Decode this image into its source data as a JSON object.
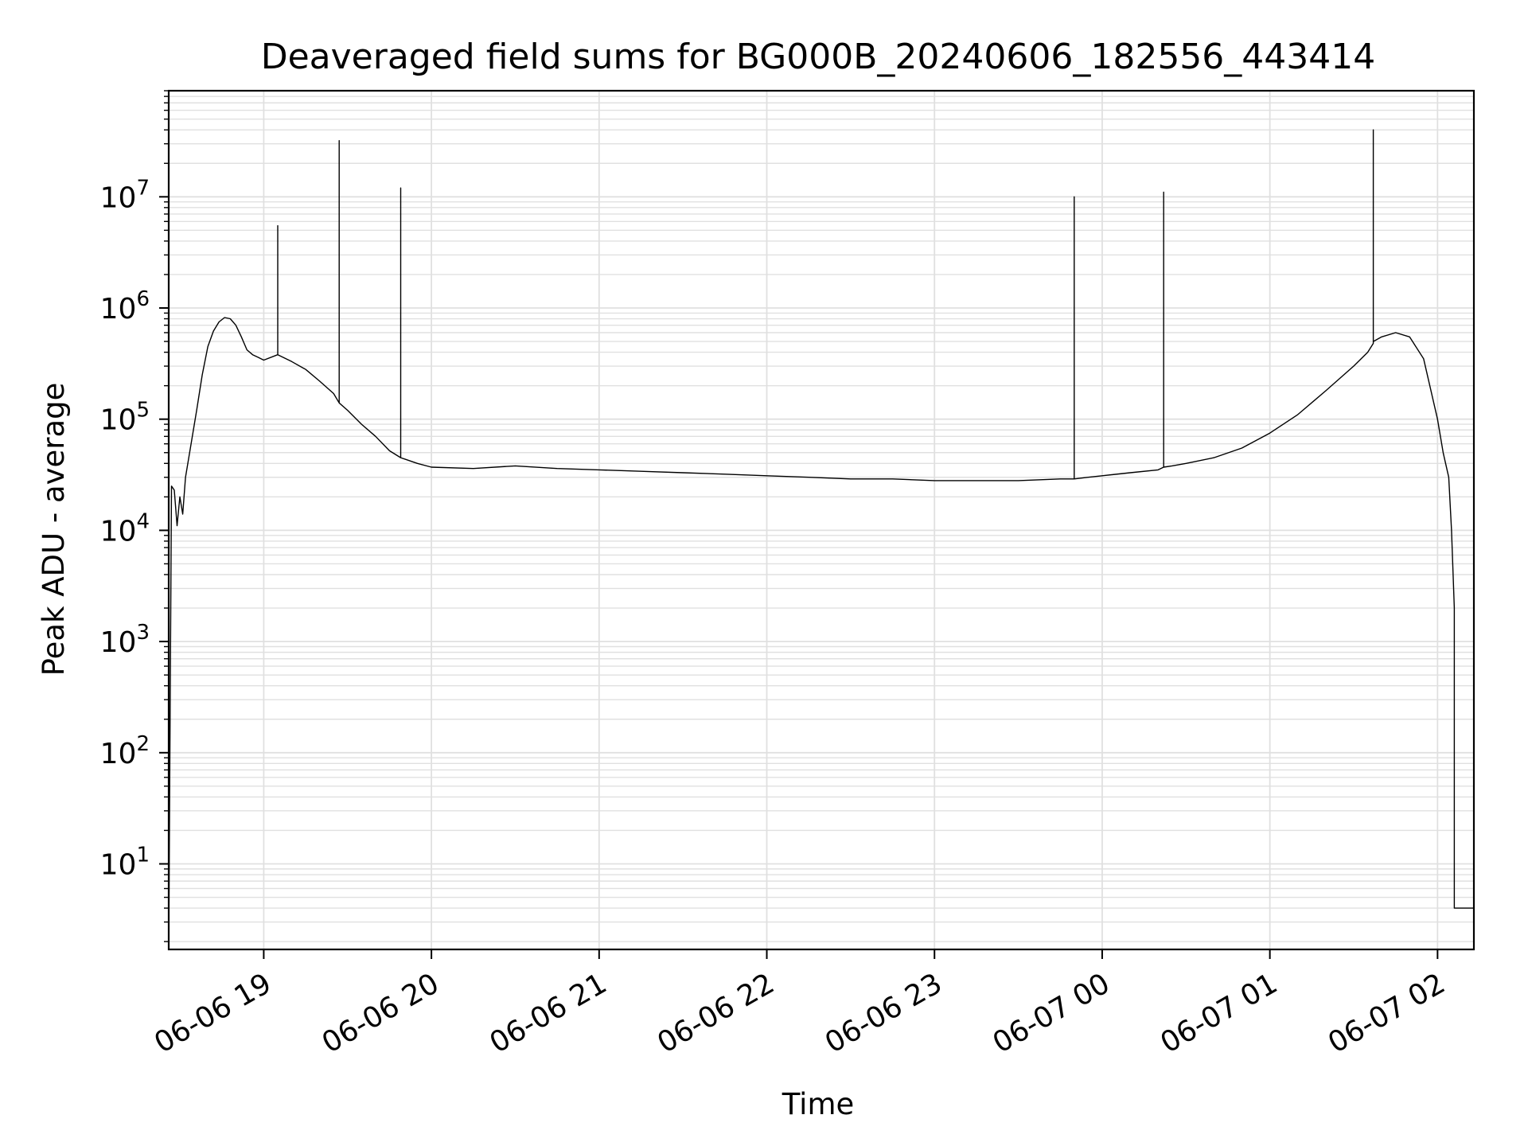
{
  "chart_data": {
    "type": "line",
    "title": "Deaveraged field sums for BG000B_20240606_182556_443414",
    "xlabel": "Time",
    "ylabel": "Peak ADU - average",
    "yscale": "log",
    "ylim": [
      1.7,
      90000000
    ],
    "xlim": [
      "2024-06-06 18:26",
      "2024-06-07 02:13"
    ],
    "grid": true,
    "line_color": "#000000",
    "grid_color": "#e0e0e0",
    "x_ticks": [
      "2024-06-06 19:00",
      "2024-06-06 20:00",
      "2024-06-06 21:00",
      "2024-06-06 22:00",
      "2024-06-06 23:00",
      "2024-06-07 00:00",
      "2024-06-07 01:00",
      "2024-06-07 02:00"
    ],
    "x_tick_labels": [
      "06-06 19",
      "06-06 20",
      "06-06 21",
      "06-06 22",
      "06-06 23",
      "06-07 00",
      "06-07 01",
      "06-07 02"
    ],
    "y_ticks": [
      10,
      100,
      1000,
      10000,
      100000,
      1000000,
      10000000
    ],
    "y_tick_labels": [
      {
        "base": "10",
        "exp": "1"
      },
      {
        "base": "10",
        "exp": "2"
      },
      {
        "base": "10",
        "exp": "3"
      },
      {
        "base": "10",
        "exp": "4"
      },
      {
        "base": "10",
        "exp": "5"
      },
      {
        "base": "10",
        "exp": "6"
      },
      {
        "base": "10",
        "exp": "7"
      }
    ],
    "series": [
      {
        "x": [
          "2024-06-06 18:26",
          "2024-06-06 18:27",
          "2024-06-06 18:28",
          "2024-06-06 18:29",
          "2024-06-06 18:30",
          "2024-06-06 18:31",
          "2024-06-06 18:32",
          "2024-06-06 18:34",
          "2024-06-06 18:36",
          "2024-06-06 18:38",
          "2024-06-06 18:40",
          "2024-06-06 18:42",
          "2024-06-06 18:44",
          "2024-06-06 18:46",
          "2024-06-06 18:48",
          "2024-06-06 18:50",
          "2024-06-06 18:52",
          "2024-06-06 18:53",
          "2024-06-06 18:54",
          "2024-06-06 18:56",
          "2024-06-06 18:58",
          "2024-06-06 19:00",
          "2024-06-06 19:05",
          "2024-06-06 19:05",
          "2024-06-06 19:05",
          "2024-06-06 19:10",
          "2024-06-06 19:15",
          "2024-06-06 19:20",
          "2024-06-06 19:25",
          "2024-06-06 19:27",
          "2024-06-06 19:27",
          "2024-06-06 19:27",
          "2024-06-06 19:30",
          "2024-06-06 19:35",
          "2024-06-06 19:40",
          "2024-06-06 19:45",
          "2024-06-06 19:49",
          "2024-06-06 19:49",
          "2024-06-06 19:49",
          "2024-06-06 19:55",
          "2024-06-06 20:00",
          "2024-06-06 20:15",
          "2024-06-06 20:30",
          "2024-06-06 20:45",
          "2024-06-06 21:00",
          "2024-06-06 21:15",
          "2024-06-06 21:30",
          "2024-06-06 21:45",
          "2024-06-06 22:00",
          "2024-06-06 22:15",
          "2024-06-06 22:30",
          "2024-06-06 22:45",
          "2024-06-06 23:00",
          "2024-06-06 23:15",
          "2024-06-06 23:30",
          "2024-06-06 23:45",
          "2024-06-06 23:50",
          "2024-06-06 23:50",
          "2024-06-06 23:50",
          "2024-06-06 23:55",
          "2024-06-07 00:00",
          "2024-06-07 00:10",
          "2024-06-07 00:20",
          "2024-06-07 00:22",
          "2024-06-07 00:22",
          "2024-06-07 00:22",
          "2024-06-07 00:25",
          "2024-06-07 00:30",
          "2024-06-07 00:40",
          "2024-06-07 00:50",
          "2024-06-07 01:00",
          "2024-06-07 01:10",
          "2024-06-07 01:20",
          "2024-06-07 01:30",
          "2024-06-07 01:35",
          "2024-06-07 01:37",
          "2024-06-07 01:37",
          "2024-06-07 01:37",
          "2024-06-07 01:40",
          "2024-06-07 01:45",
          "2024-06-07 01:50",
          "2024-06-07 01:55",
          "2024-06-07 02:00",
          "2024-06-07 02:02",
          "2024-06-07 02:04",
          "2024-06-07 02:05",
          "2024-06-07 02:06",
          "2024-06-07 02:06",
          "2024-06-07 02:07",
          "2024-06-07 02:10",
          "2024-06-07 02:13"
        ],
        "y": [
          1.7,
          25000,
          23000,
          11000,
          20000,
          14000,
          30000,
          60000,
          120000,
          250000,
          450000,
          620000,
          750000,
          820000,
          800000,
          700000,
          550000,
          480000,
          420000,
          380000,
          360000,
          340000,
          380000,
          5500000,
          380000,
          330000,
          280000,
          220000,
          170000,
          140000,
          32000000,
          140000,
          120000,
          90000,
          70000,
          52000,
          45000,
          12000000,
          45000,
          40000,
          37000,
          36000,
          38000,
          36000,
          35000,
          34000,
          33000,
          32000,
          31000,
          30000,
          29000,
          29000,
          28000,
          28000,
          28000,
          29000,
          29000,
          10000000,
          29000,
          30000,
          31000,
          33000,
          35000,
          37000,
          11000000,
          37000,
          38000,
          40000,
          45000,
          55000,
          75000,
          110000,
          180000,
          300000,
          400000,
          480000,
          40000000,
          500000,
          550000,
          600000,
          550000,
          350000,
          100000,
          50000,
          30000,
          10000,
          2000,
          4,
          4,
          4,
          4
        ]
      }
    ]
  }
}
